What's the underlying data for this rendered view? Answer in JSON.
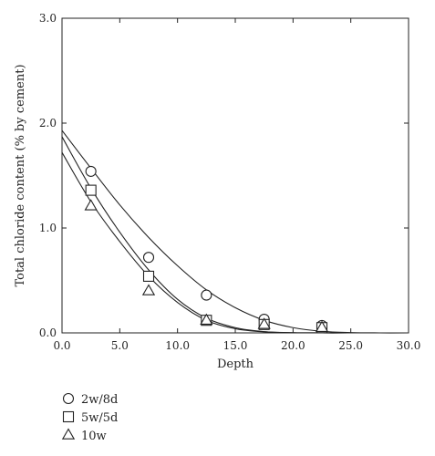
{
  "chart_data": {
    "type": "scatter",
    "xlabel": "Depth",
    "ylabel": "Total chloride content (% by cement)",
    "xlim": [
      0,
      30
    ],
    "ylim": [
      0,
      3
    ],
    "xticks": [
      0,
      5,
      10,
      15,
      20,
      25,
      30
    ],
    "yticks": [
      0,
      1,
      2,
      3
    ],
    "xtick_labels": [
      "0.0",
      "5.0",
      "10.0",
      "15.0",
      "20.0",
      "25.0",
      "30.0"
    ],
    "ytick_labels": [
      "0.0",
      "1.0",
      "2.0",
      "3.0"
    ],
    "grid": false,
    "legend_position": "bottom-left, below plot",
    "series": [
      {
        "name": "2w/8d",
        "marker": "circle",
        "x": [
          2.5,
          7.5,
          12.5,
          17.5,
          22.5
        ],
        "y": [
          1.54,
          0.72,
          0.36,
          0.13,
          0.07
        ],
        "fit_curve_x": [
          0,
          2.5,
          5,
          7.5,
          10,
          12.5,
          15,
          17.5,
          20,
          22.5,
          25,
          27.5,
          30
        ],
        "fit_curve_y": [
          1.93,
          1.57,
          1.22,
          0.91,
          0.64,
          0.41,
          0.24,
          0.12,
          0.05,
          0.015,
          0.003,
          0.0,
          0.0
        ]
      },
      {
        "name": "5w/5d",
        "marker": "square",
        "x": [
          2.5,
          7.5,
          12.5,
          17.5,
          22.5
        ],
        "y": [
          1.36,
          0.54,
          0.12,
          0.08,
          0.05
        ],
        "fit_curve_x": [
          0,
          2.5,
          5,
          7.5,
          10,
          12.5,
          15,
          17.5,
          20,
          22.5,
          25
        ],
        "fit_curve_y": [
          1.87,
          1.38,
          0.96,
          0.6,
          0.32,
          0.14,
          0.05,
          0.012,
          0.002,
          0.0,
          0.0
        ]
      },
      {
        "name": "10w",
        "marker": "triangle",
        "x": [
          2.5,
          7.5,
          12.5,
          17.5,
          22.5
        ],
        "y": [
          1.21,
          0.4,
          0.12,
          0.08,
          0.05
        ],
        "fit_curve_x": [
          0,
          2.5,
          5,
          7.5,
          10,
          12.5,
          15,
          17.5,
          20,
          22.5,
          25
        ],
        "fit_curve_y": [
          1.72,
          1.25,
          0.87,
          0.54,
          0.29,
          0.12,
          0.04,
          0.01,
          0.002,
          0.0,
          0.0
        ]
      }
    ]
  }
}
